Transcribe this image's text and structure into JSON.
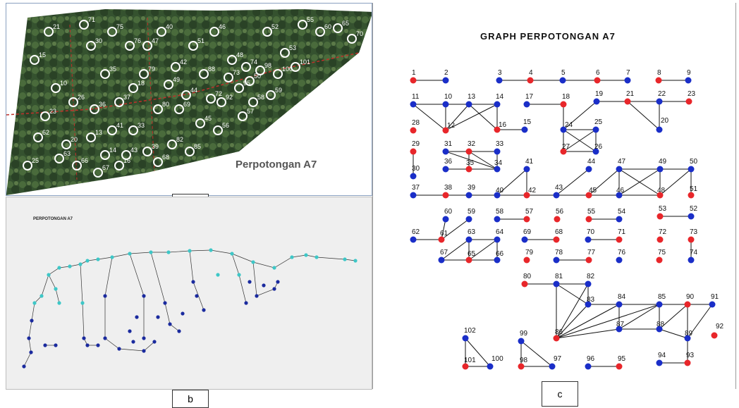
{
  "panel_a": {
    "title": "Perpotongan A7",
    "photo_description_free": true,
    "visible_labels": [
      "15",
      "10",
      "23",
      "20",
      "25",
      "30",
      "35",
      "37",
      "33",
      "39",
      "40",
      "42",
      "44",
      "45",
      "46",
      "48",
      "50",
      "52",
      "53",
      "55",
      "60",
      "65",
      "70",
      "71",
      "75",
      "76",
      "79",
      "80",
      "82",
      "85",
      "88",
      "92",
      "95",
      "98",
      "100",
      "101",
      "13",
      "14",
      "16",
      "18",
      "21",
      "26",
      "36",
      "41",
      "43",
      "47",
      "49",
      "51",
      "56",
      "57",
      "58",
      "59",
      "62",
      "63",
      "66",
      "67",
      "68",
      "69",
      "72",
      "73",
      "74"
    ]
  },
  "panel_b": {
    "title": "PERPOTONGAN A7"
  },
  "panel_c": {
    "title": "GRAPH PERPOTONGAN A7",
    "node_colors": {
      "red": "#e8262a",
      "blue": "#1a2ec8"
    },
    "nodes": [
      {
        "id": "1",
        "c": "red"
      },
      {
        "id": "2",
        "c": "blue"
      },
      {
        "id": "3",
        "c": "blue"
      },
      {
        "id": "4",
        "c": "red"
      },
      {
        "id": "5",
        "c": "blue"
      },
      {
        "id": "6",
        "c": "red"
      },
      {
        "id": "7",
        "c": "blue"
      },
      {
        "id": "8",
        "c": "red"
      },
      {
        "id": "9",
        "c": "blue"
      },
      {
        "id": "11",
        "c": "blue"
      },
      {
        "id": "10",
        "c": "blue"
      },
      {
        "id": "13",
        "c": "blue"
      },
      {
        "id": "14",
        "c": "blue"
      },
      {
        "id": "17",
        "c": "blue"
      },
      {
        "id": "18",
        "c": "red"
      },
      {
        "id": "19",
        "c": "blue"
      },
      {
        "id": "21",
        "c": "red"
      },
      {
        "id": "22",
        "c": "blue"
      },
      {
        "id": "23",
        "c": "red"
      },
      {
        "id": "28",
        "c": "red"
      },
      {
        "id": "12",
        "c": "red"
      },
      {
        "id": "16",
        "c": "red"
      },
      {
        "id": "15",
        "c": "blue"
      },
      {
        "id": "24",
        "c": "blue"
      },
      {
        "id": "25",
        "c": "blue"
      },
      {
        "id": "20",
        "c": "blue"
      },
      {
        "id": "29",
        "c": "red"
      },
      {
        "id": "27",
        "c": "red"
      },
      {
        "id": "26",
        "c": "blue"
      },
      {
        "id": "31",
        "c": "blue"
      },
      {
        "id": "32",
        "c": "red"
      },
      {
        "id": "33",
        "c": "blue"
      },
      {
        "id": "30",
        "c": "blue"
      },
      {
        "id": "36",
        "c": "blue"
      },
      {
        "id": "35",
        "c": "red"
      },
      {
        "id": "34",
        "c": "blue"
      },
      {
        "id": "41",
        "c": "blue"
      },
      {
        "id": "44",
        "c": "blue"
      },
      {
        "id": "47",
        "c": "blue"
      },
      {
        "id": "49",
        "c": "blue"
      },
      {
        "id": "50",
        "c": "blue"
      },
      {
        "id": "37",
        "c": "blue"
      },
      {
        "id": "38",
        "c": "red"
      },
      {
        "id": "39",
        "c": "blue"
      },
      {
        "id": "40",
        "c": "blue"
      },
      {
        "id": "42",
        "c": "red"
      },
      {
        "id": "43",
        "c": "blue"
      },
      {
        "id": "45",
        "c": "red"
      },
      {
        "id": "46",
        "c": "blue"
      },
      {
        "id": "48",
        "c": "red"
      },
      {
        "id": "51",
        "c": "red"
      },
      {
        "id": "60",
        "c": "blue"
      },
      {
        "id": "59",
        "c": "blue"
      },
      {
        "id": "58",
        "c": "blue"
      },
      {
        "id": "57",
        "c": "red"
      },
      {
        "id": "56",
        "c": "red"
      },
      {
        "id": "55",
        "c": "red"
      },
      {
        "id": "54",
        "c": "blue"
      },
      {
        "id": "53",
        "c": "red"
      },
      {
        "id": "52",
        "c": "blue"
      },
      {
        "id": "62",
        "c": "blue"
      },
      {
        "id": "61",
        "c": "red"
      },
      {
        "id": "63",
        "c": "blue"
      },
      {
        "id": "64",
        "c": "blue"
      },
      {
        "id": "69",
        "c": "blue"
      },
      {
        "id": "68",
        "c": "red"
      },
      {
        "id": "70",
        "c": "blue"
      },
      {
        "id": "71",
        "c": "red"
      },
      {
        "id": "72",
        "c": "red"
      },
      {
        "id": "73",
        "c": "red"
      },
      {
        "id": "67",
        "c": "blue"
      },
      {
        "id": "65",
        "c": "red"
      },
      {
        "id": "66",
        "c": "blue"
      },
      {
        "id": "79",
        "c": "red"
      },
      {
        "id": "78",
        "c": "blue"
      },
      {
        "id": "77",
        "c": "red"
      },
      {
        "id": "76",
        "c": "blue"
      },
      {
        "id": "75",
        "c": "red"
      },
      {
        "id": "74",
        "c": "blue"
      },
      {
        "id": "80",
        "c": "red"
      },
      {
        "id": "81",
        "c": "blue"
      },
      {
        "id": "82",
        "c": "blue"
      },
      {
        "id": "83",
        "c": "blue"
      },
      {
        "id": "84",
        "c": "blue"
      },
      {
        "id": "85",
        "c": "blue"
      },
      {
        "id": "90",
        "c": "red"
      },
      {
        "id": "91",
        "c": "blue"
      },
      {
        "id": "86",
        "c": "red"
      },
      {
        "id": "87",
        "c": "blue"
      },
      {
        "id": "88",
        "c": "blue"
      },
      {
        "id": "89",
        "c": "blue"
      },
      {
        "id": "92",
        "c": "red"
      },
      {
        "id": "102",
        "c": "blue"
      },
      {
        "id": "99",
        "c": "blue"
      },
      {
        "id": "94",
        "c": "blue"
      },
      {
        "id": "93",
        "c": "red"
      },
      {
        "id": "101",
        "c": "red"
      },
      {
        "id": "100",
        "c": "blue"
      },
      {
        "id": "98",
        "c": "red"
      },
      {
        "id": "97",
        "c": "blue"
      },
      {
        "id": "96",
        "c": "blue"
      },
      {
        "id": "95",
        "c": "red"
      }
    ],
    "edges": [
      [
        "1",
        "2"
      ],
      [
        "3",
        "4"
      ],
      [
        "4",
        "5"
      ],
      [
        "5",
        "6"
      ],
      [
        "6",
        "7"
      ],
      [
        "8",
        "9"
      ],
      [
        "11",
        "10"
      ],
      [
        "10",
        "13"
      ],
      [
        "13",
        "14"
      ],
      [
        "11",
        "12"
      ],
      [
        "10",
        "12"
      ],
      [
        "12",
        "13"
      ],
      [
        "12",
        "14"
      ],
      [
        "13",
        "16"
      ],
      [
        "14",
        "16"
      ],
      [
        "16",
        "15"
      ],
      [
        "17",
        "18"
      ],
      [
        "18",
        "24"
      ],
      [
        "19",
        "21"
      ],
      [
        "21",
        "22"
      ],
      [
        "22",
        "23"
      ],
      [
        "19",
        "24"
      ],
      [
        "21",
        "20"
      ],
      [
        "22",
        "20"
      ],
      [
        "24",
        "25"
      ],
      [
        "24",
        "27"
      ],
      [
        "25",
        "26"
      ],
      [
        "27",
        "26"
      ],
      [
        "24",
        "26"
      ],
      [
        "27",
        "25"
      ],
      [
        "29",
        "30"
      ],
      [
        "31",
        "32"
      ],
      [
        "32",
        "33"
      ],
      [
        "31",
        "34"
      ],
      [
        "36",
        "35"
      ],
      [
        "35",
        "34"
      ],
      [
        "32",
        "35"
      ],
      [
        "33",
        "34"
      ],
      [
        "32",
        "34"
      ],
      [
        "37",
        "38"
      ],
      [
        "38",
        "39"
      ],
      [
        "39",
        "40"
      ],
      [
        "40",
        "42"
      ],
      [
        "40",
        "41"
      ],
      [
        "41",
        "42"
      ],
      [
        "42",
        "43"
      ],
      [
        "43",
        "45"
      ],
      [
        "43",
        "44"
      ],
      [
        "45",
        "46"
      ],
      [
        "46",
        "48"
      ],
      [
        "45",
        "47"
      ],
      [
        "47",
        "49"
      ],
      [
        "49",
        "50"
      ],
      [
        "48",
        "50"
      ],
      [
        "47",
        "48"
      ],
      [
        "46",
        "49"
      ],
      [
        "47",
        "46"
      ],
      [
        "49",
        "48"
      ],
      [
        "50",
        "51"
      ],
      [
        "60",
        "61"
      ],
      [
        "61",
        "59"
      ],
      [
        "62",
        "61"
      ],
      [
        "58",
        "57"
      ],
      [
        "55",
        "54"
      ],
      [
        "53",
        "52"
      ],
      [
        "63",
        "64"
      ],
      [
        "63",
        "67"
      ],
      [
        "63",
        "65"
      ],
      [
        "64",
        "65"
      ],
      [
        "64",
        "66"
      ],
      [
        "67",
        "65"
      ],
      [
        "65",
        "66"
      ],
      [
        "69",
        "68"
      ],
      [
        "70",
        "71"
      ],
      [
        "73",
        "74"
      ],
      [
        "78",
        "77"
      ],
      [
        "80",
        "81"
      ],
      [
        "81",
        "82"
      ],
      [
        "81",
        "86"
      ],
      [
        "82",
        "86"
      ],
      [
        "81",
        "83"
      ],
      [
        "82",
        "83"
      ],
      [
        "83",
        "84"
      ],
      [
        "84",
        "85"
      ],
      [
        "85",
        "90"
      ],
      [
        "90",
        "91"
      ],
      [
        "83",
        "86"
      ],
      [
        "84",
        "86"
      ],
      [
        "85",
        "86"
      ],
      [
        "86",
        "87"
      ],
      [
        "87",
        "88"
      ],
      [
        "88",
        "89"
      ],
      [
        "84",
        "87"
      ],
      [
        "85",
        "87"
      ],
      [
        "88",
        "90"
      ],
      [
        "89",
        "90"
      ],
      [
        "85",
        "88"
      ],
      [
        "90",
        "89"
      ],
      [
        "89",
        "91"
      ],
      [
        "89",
        "93"
      ],
      [
        "94",
        "93"
      ],
      [
        "102",
        "101"
      ],
      [
        "101",
        "100"
      ],
      [
        "102",
        "100"
      ],
      [
        "99",
        "98"
      ],
      [
        "98",
        "97"
      ],
      [
        "99",
        "97"
      ],
      [
        "96",
        "95"
      ]
    ]
  },
  "labels": {
    "a": "a",
    "b": "b",
    "c": "c"
  }
}
